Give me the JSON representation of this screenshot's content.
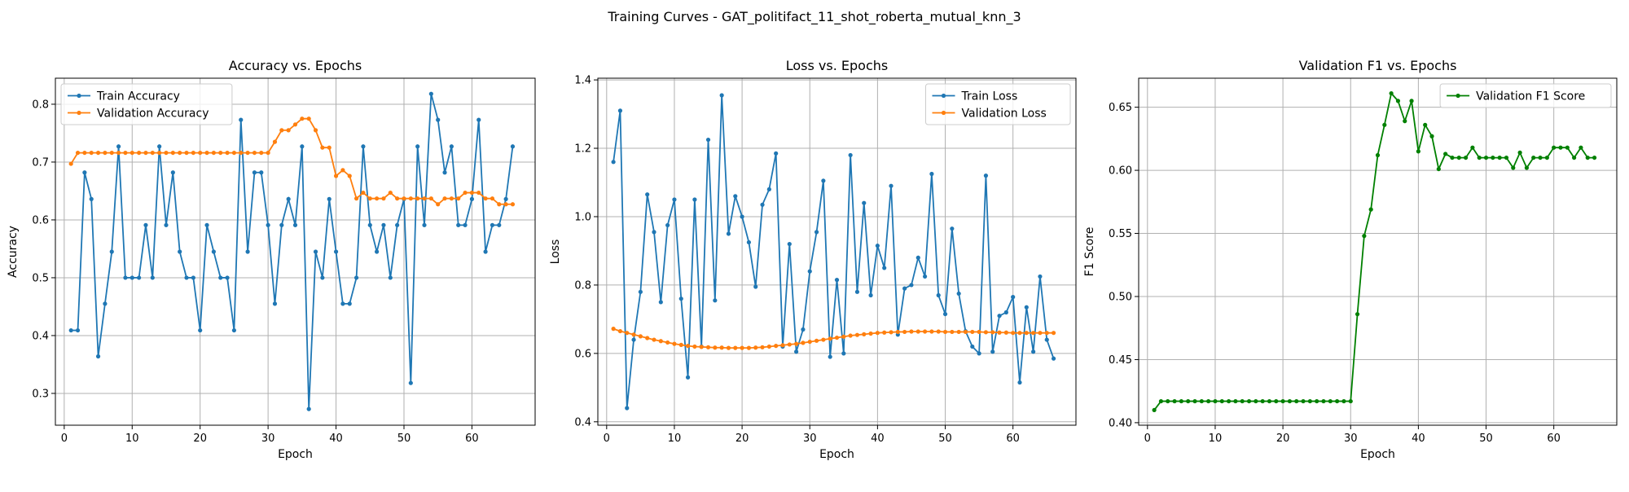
{
  "suptitle": "Training Curves - GAT_politifact_11_shot_roberta_mutual_knn_3",
  "chart_data": [
    {
      "type": "line",
      "title": "Accuracy vs. Epochs",
      "xlabel": "Epoch",
      "ylabel": "Accuracy",
      "xlim": [
        -1.3,
        69.3
      ],
      "ylim": [
        0.245,
        0.845
      ],
      "xticks": [
        0,
        10,
        20,
        30,
        40,
        50,
        60
      ],
      "yticks": [
        0.3,
        0.4,
        0.5,
        0.6,
        0.7,
        0.8
      ],
      "ytick_labels": [
        "0.3",
        "0.4",
        "0.5",
        "0.6",
        "0.7",
        "0.8"
      ],
      "grid": true,
      "legend_position": "upper-left",
      "series": [
        {
          "name": "Train Accuracy",
          "color": "#1f77b4",
          "values": [
            0.409,
            0.409,
            0.682,
            0.636,
            0.364,
            0.455,
            0.545,
            0.727,
            0.5,
            0.5,
            0.5,
            0.591,
            0.5,
            0.727,
            0.591,
            0.682,
            0.545,
            0.5,
            0.5,
            0.409,
            0.591,
            0.545,
            0.5,
            0.5,
            0.409,
            0.773,
            0.545,
            0.682,
            0.682,
            0.591,
            0.455,
            0.591,
            0.636,
            0.591,
            0.727,
            0.273,
            0.545,
            0.5,
            0.636,
            0.545,
            0.455,
            0.455,
            0.5,
            0.727,
            0.591,
            0.545,
            0.591,
            0.5,
            0.591,
            0.636,
            0.318,
            0.727,
            0.591,
            0.818,
            0.773,
            0.682,
            0.727,
            0.591,
            0.591,
            0.636,
            0.773,
            0.545,
            0.591,
            0.591,
            0.636,
            0.727
          ]
        },
        {
          "name": "Validation Accuracy",
          "color": "#ff7f0e",
          "values": [
            0.697,
            0.716,
            0.716,
            0.716,
            0.716,
            0.716,
            0.716,
            0.716,
            0.716,
            0.716,
            0.716,
            0.716,
            0.716,
            0.716,
            0.716,
            0.716,
            0.716,
            0.716,
            0.716,
            0.716,
            0.716,
            0.716,
            0.716,
            0.716,
            0.716,
            0.716,
            0.716,
            0.716,
            0.716,
            0.716,
            0.735,
            0.755,
            0.755,
            0.765,
            0.775,
            0.775,
            0.755,
            0.725,
            0.725,
            0.676,
            0.686,
            0.676,
            0.637,
            0.647,
            0.637,
            0.637,
            0.637,
            0.647,
            0.637,
            0.637,
            0.637,
            0.637,
            0.637,
            0.637,
            0.627,
            0.637,
            0.637,
            0.637,
            0.647,
            0.647,
            0.647,
            0.637,
            0.637,
            0.627,
            0.627,
            0.627
          ]
        }
      ]
    },
    {
      "type": "line",
      "title": "Loss vs. Epochs",
      "xlabel": "Epoch",
      "ylabel": "Loss",
      "xlim": [
        -1.3,
        69.3
      ],
      "ylim": [
        0.39,
        1.405
      ],
      "xticks": [
        0,
        10,
        20,
        30,
        40,
        50,
        60
      ],
      "yticks": [
        0.4,
        0.6,
        0.8,
        1.0,
        1.2,
        1.4
      ],
      "ytick_labels": [
        "0.4",
        "0.6",
        "0.8",
        "1.0",
        "1.2",
        "1.4"
      ],
      "grid": true,
      "legend_position": "upper-right",
      "series": [
        {
          "name": "Train Loss",
          "color": "#1f77b4",
          "values": [
            1.16,
            1.31,
            0.44,
            0.64,
            0.78,
            1.065,
            0.955,
            0.75,
            0.975,
            1.05,
            0.76,
            0.53,
            1.05,
            0.62,
            1.225,
            0.755,
            1.355,
            0.95,
            1.06,
            1.0,
            0.925,
            0.795,
            1.035,
            1.08,
            1.185,
            0.62,
            0.92,
            0.605,
            0.67,
            0.84,
            0.955,
            1.105,
            0.59,
            0.815,
            0.6,
            1.18,
            0.78,
            1.04,
            0.77,
            0.915,
            0.85,
            1.09,
            0.655,
            0.79,
            0.8,
            0.88,
            0.825,
            1.125,
            0.77,
            0.715,
            0.965,
            0.775,
            0.665,
            0.62,
            0.6,
            1.12,
            0.605,
            0.71,
            0.72,
            0.765,
            0.515,
            0.735,
            0.605,
            0.825,
            0.64,
            0.585
          ]
        },
        {
          "name": "Validation Loss",
          "color": "#ff7f0e",
          "values": [
            0.672,
            0.665,
            0.66,
            0.655,
            0.65,
            0.645,
            0.64,
            0.636,
            0.632,
            0.628,
            0.625,
            0.622,
            0.62,
            0.619,
            0.618,
            0.617,
            0.617,
            0.616,
            0.616,
            0.616,
            0.616,
            0.617,
            0.618,
            0.62,
            0.622,
            0.624,
            0.626,
            0.628,
            0.631,
            0.634,
            0.637,
            0.64,
            0.643,
            0.646,
            0.649,
            0.652,
            0.654,
            0.656,
            0.658,
            0.66,
            0.661,
            0.662,
            0.663,
            0.663,
            0.664,
            0.664,
            0.664,
            0.664,
            0.664,
            0.663,
            0.663,
            0.663,
            0.663,
            0.663,
            0.663,
            0.662,
            0.662,
            0.661,
            0.661,
            0.66,
            0.66,
            0.66,
            0.66,
            0.66,
            0.66,
            0.66
          ]
        }
      ]
    },
    {
      "type": "line",
      "title": "Validation F1 vs. Epochs",
      "xlabel": "Epoch",
      "ylabel": "F1 Score",
      "xlim": [
        -1.3,
        69.3
      ],
      "ylim": [
        0.398,
        0.673
      ],
      "xticks": [
        0,
        10,
        20,
        30,
        40,
        50,
        60
      ],
      "yticks": [
        0.4,
        0.45,
        0.5,
        0.55,
        0.6,
        0.65
      ],
      "ytick_labels": [
        "0.40",
        "0.45",
        "0.50",
        "0.55",
        "0.60",
        "0.65"
      ],
      "grid": true,
      "legend_position": "upper-right",
      "series": [
        {
          "name": "Validation F1 Score",
          "color": "#008000",
          "values": [
            0.41,
            0.417,
            0.417,
            0.417,
            0.417,
            0.417,
            0.417,
            0.417,
            0.417,
            0.417,
            0.417,
            0.417,
            0.417,
            0.417,
            0.417,
            0.417,
            0.417,
            0.417,
            0.417,
            0.417,
            0.417,
            0.417,
            0.417,
            0.417,
            0.417,
            0.417,
            0.417,
            0.417,
            0.417,
            0.417,
            0.486,
            0.548,
            0.569,
            0.612,
            0.636,
            0.661,
            0.655,
            0.639,
            0.655,
            0.615,
            0.636,
            0.627,
            0.601,
            0.613,
            0.61,
            0.61,
            0.61,
            0.618,
            0.61,
            0.61,
            0.61,
            0.61,
            0.61,
            0.602,
            0.614,
            0.602,
            0.61,
            0.61,
            0.61,
            0.618,
            0.618,
            0.618,
            0.61,
            0.618,
            0.61,
            0.61
          ]
        }
      ]
    }
  ]
}
